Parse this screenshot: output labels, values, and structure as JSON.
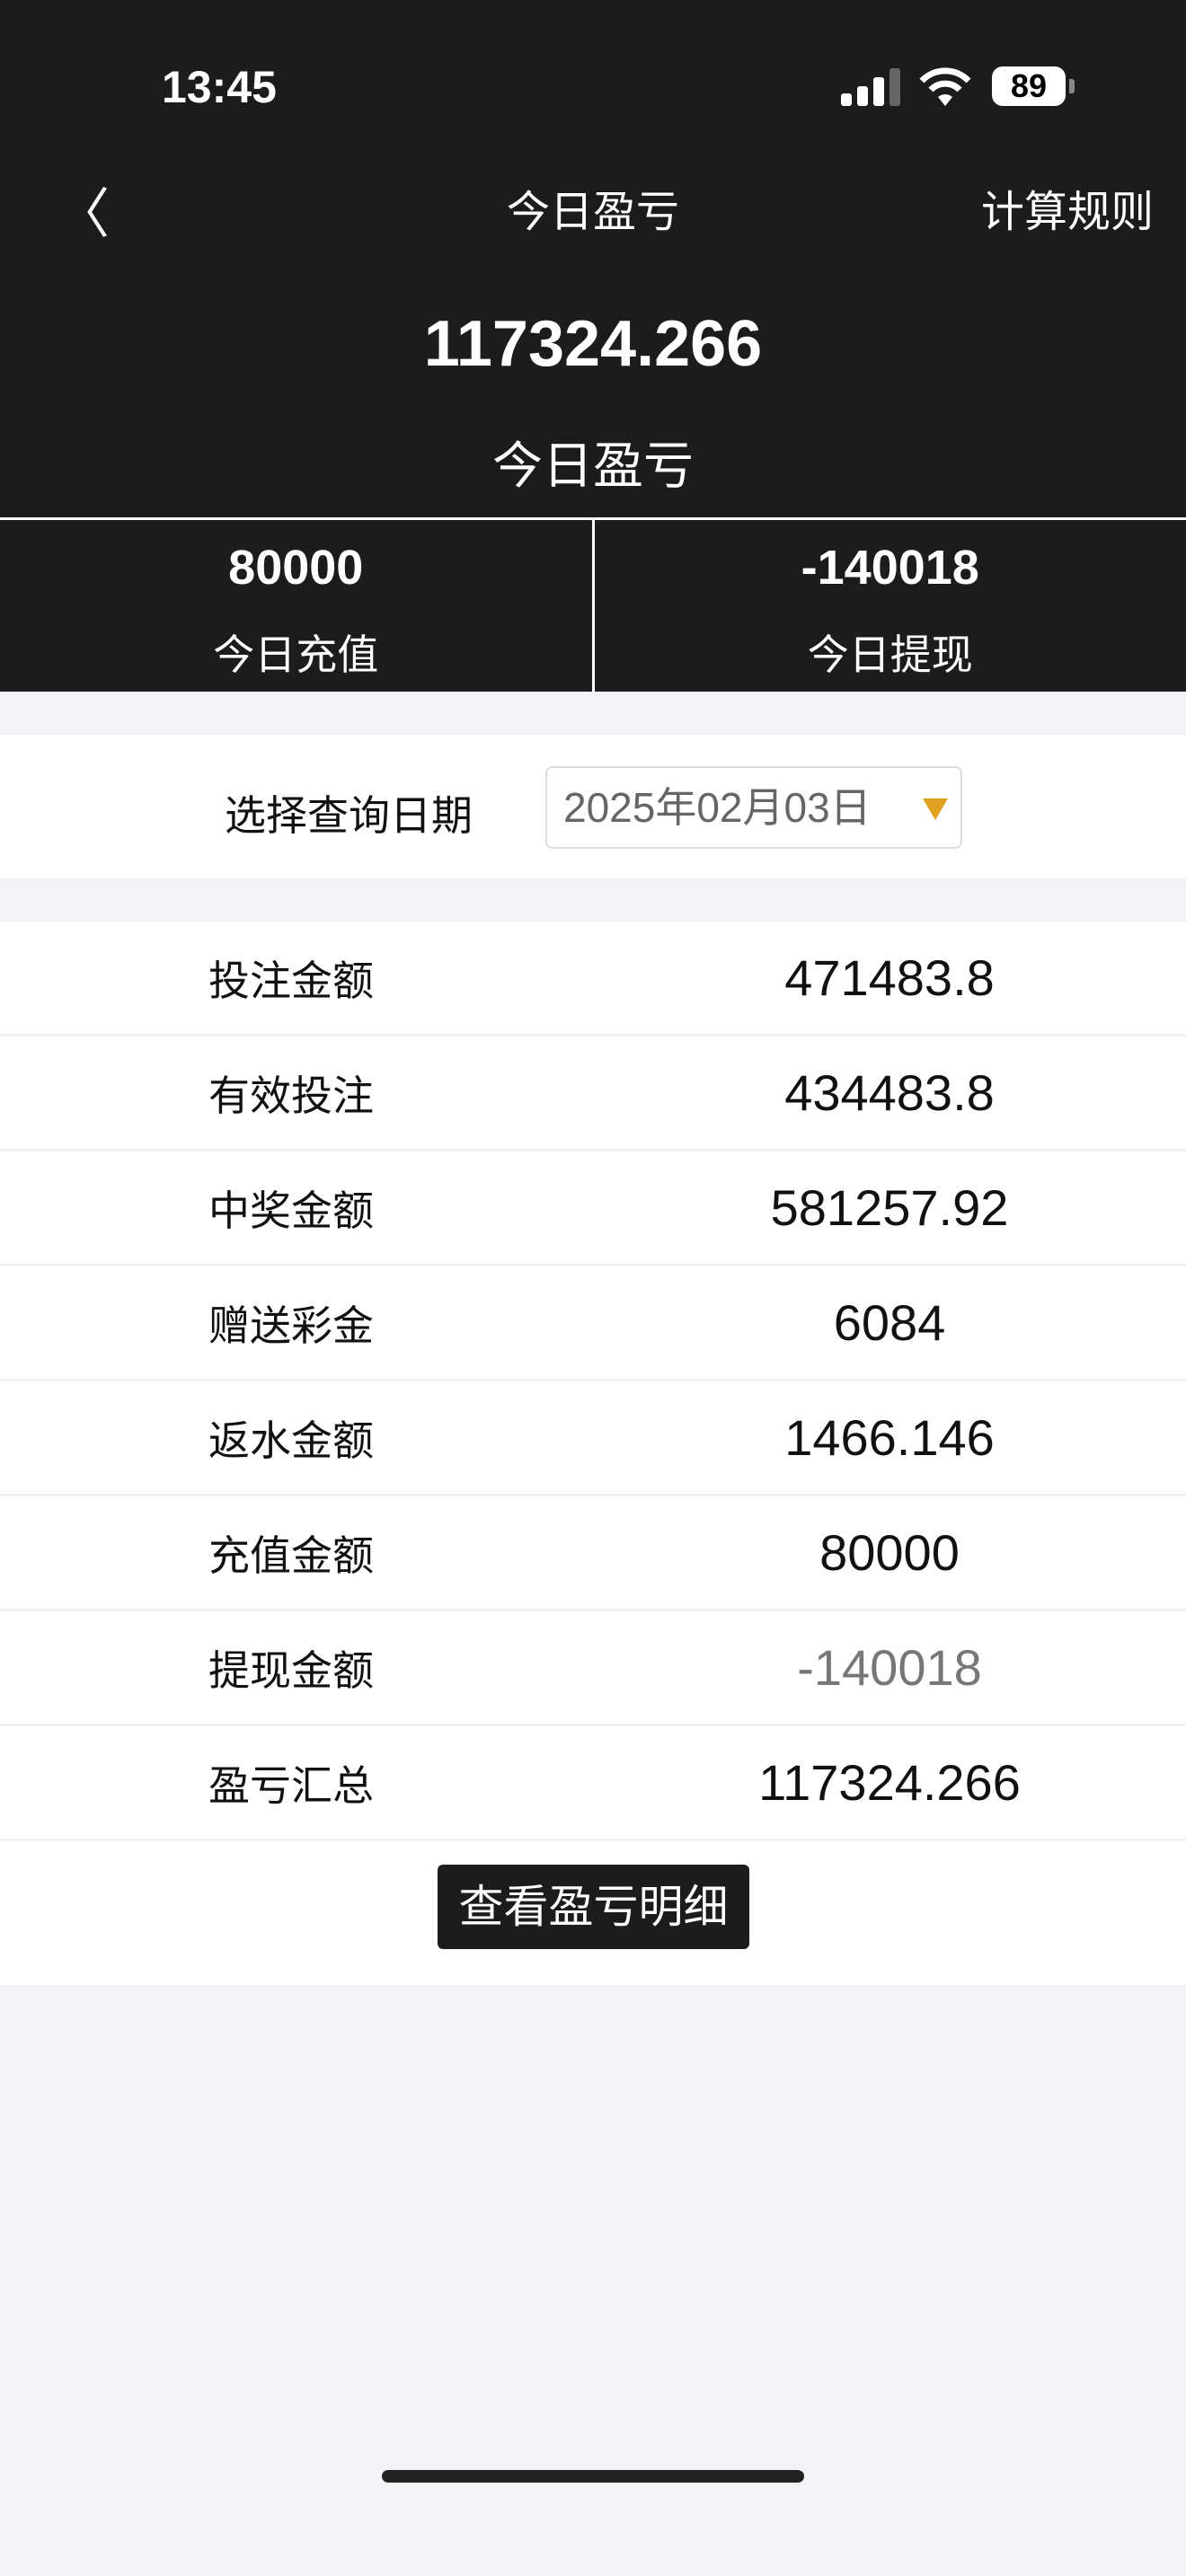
{
  "status_bar": {
    "time": "13:45",
    "battery": "89",
    "icons": [
      "signal-icon",
      "wifi-icon",
      "battery-icon"
    ]
  },
  "nav": {
    "back_icon": "chevron-left-icon",
    "title": "今日盈亏",
    "rules": "计算规则"
  },
  "summary": {
    "value": "117324.266",
    "label": "今日盈亏"
  },
  "stats": [
    {
      "value": "80000",
      "label": "今日充值"
    },
    {
      "value": "-140018",
      "label": "今日提现"
    }
  ],
  "date": {
    "label": "选择查询日期",
    "value": "2025年02月03日",
    "accent": "#e0a020"
  },
  "rows": [
    {
      "label": "投注金额",
      "value": "471483.8"
    },
    {
      "label": "有效投注",
      "value": "434483.8"
    },
    {
      "label": "中奖金额",
      "value": "581257.92"
    },
    {
      "label": "赠送彩金",
      "value": "6084"
    },
    {
      "label": "返水金额",
      "value": "1466.146"
    },
    {
      "label": "充值金额",
      "value": "80000"
    },
    {
      "label": "提现金额",
      "value": "-140018"
    },
    {
      "label": "盈亏汇总",
      "value": "117324.266"
    }
  ],
  "detail_button": "查看盈亏明细"
}
